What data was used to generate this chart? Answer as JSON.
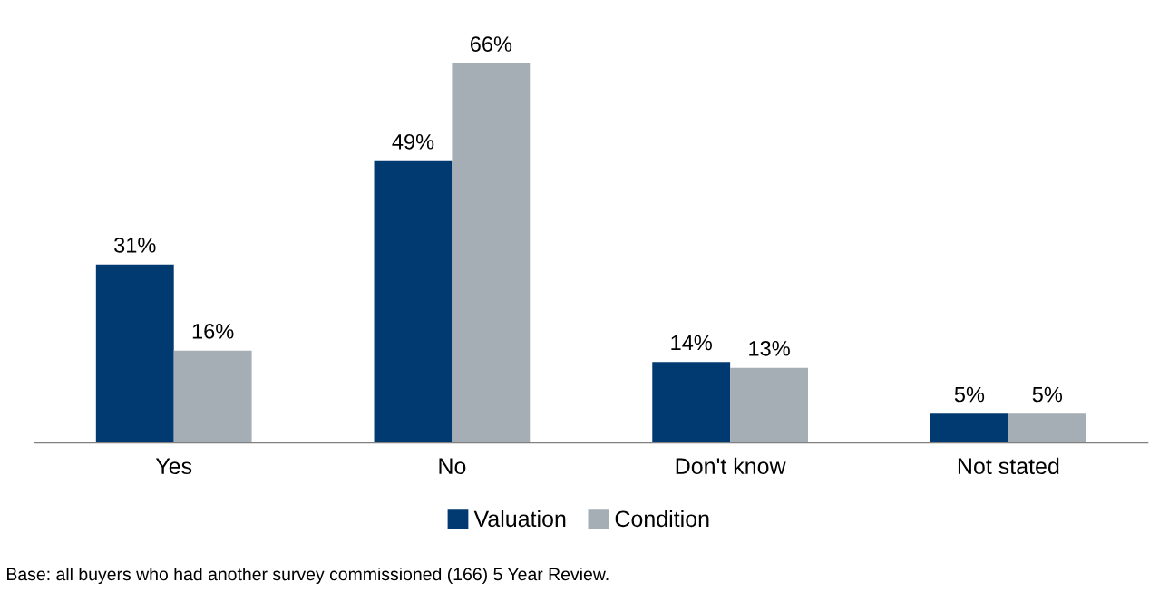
{
  "chart_data": {
    "type": "bar",
    "categories": [
      "Yes",
      "No",
      "Don't know",
      "Not stated"
    ],
    "series": [
      {
        "name": "Valuation",
        "color": "#003a70",
        "values": [
          31,
          49,
          14,
          5
        ],
        "value_labels": [
          "31%",
          "49%",
          "14%",
          "5%"
        ]
      },
      {
        "name": "Condition",
        "color": "#a5adb5",
        "values": [
          16,
          66,
          13,
          5
        ],
        "value_labels": [
          "16%",
          "66%",
          "13%",
          "5%"
        ]
      }
    ],
    "legend": "bottom",
    "grid": false,
    "annotations": [
      "Base: all buyers who had another survey commissioned (166) 5 Year Review."
    ]
  }
}
